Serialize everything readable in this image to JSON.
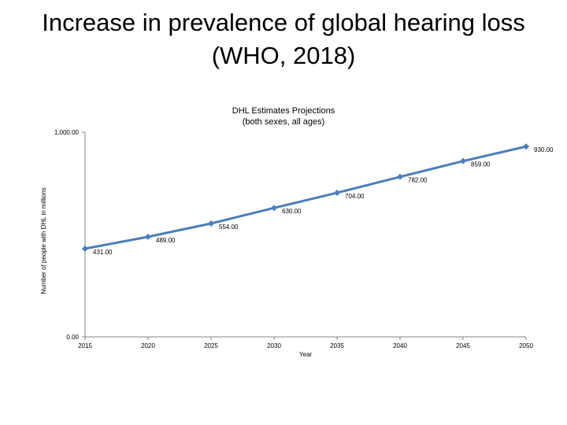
{
  "slide": {
    "title_line1": "Increase in prevalence of global hearing loss",
    "title_line2": "(WHO, 2018)"
  },
  "chart_data": {
    "type": "line",
    "title_line1": "DHL Estimates Projections",
    "title_line2": "(both sexes, all ages)",
    "xlabel": "Year",
    "ylabel": "Number of people with DHL in millions",
    "x": [
      2015,
      2020,
      2025,
      2030,
      2035,
      2040,
      2045,
      2050
    ],
    "series": [
      {
        "name": "DHL Estimates Projections",
        "values": [
          431,
          489,
          554,
          630,
          704,
          782,
          859,
          930
        ],
        "value_labels": [
          "431.00",
          "489.00",
          "554.00",
          "630.00",
          "704.00",
          "782.00",
          "859.00",
          "930.00"
        ]
      }
    ],
    "ylim": [
      0,
      1000
    ],
    "y_tick_labels": [
      "0.00",
      "1,000.00"
    ],
    "x_tick_labels": [
      "2015",
      "2020",
      "2025",
      "2030",
      "2035",
      "2040",
      "2045",
      "2050"
    ],
    "grid": false,
    "line_color": "#4a7ebb",
    "marker_color": "#4a7ebb"
  }
}
